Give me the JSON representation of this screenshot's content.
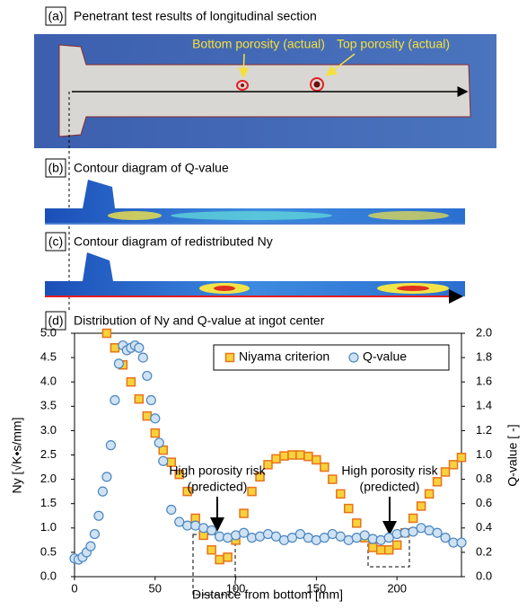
{
  "panels": {
    "a": {
      "label": "(a)",
      "title": "Penetrant test results of longitudinal section",
      "bottom": "Bottom porosity (actual)",
      "top": "Top porosity (actual)"
    },
    "b": {
      "label": "(b)",
      "title": "Contour diagram of Q-value"
    },
    "c": {
      "label": "(c)",
      "title": "Contour diagram of redistributed Ny"
    },
    "d": {
      "label": "(d)"
    }
  },
  "chart_data": {
    "type": "scatter",
    "title": "Distribution of Ny and Q-value at ingot center",
    "xlabel": "Distance from bottom [mm]",
    "ylabel": "Ny [√K•s/mm]",
    "y2label": "Q-value [ -]",
    "xlim": [
      0,
      240
    ],
    "xticks": [
      0,
      50,
      100,
      150,
      200
    ],
    "ylim": [
      0,
      5
    ],
    "yticks": [
      {
        "value": 0,
        "label": "0.0"
      },
      {
        "value": 0.5,
        "label": "0.5"
      },
      {
        "value": 1,
        "label": "1.0"
      },
      {
        "value": 1.5,
        "label": "1.5"
      },
      {
        "value": 2,
        "label": "2.0"
      },
      {
        "value": 2.5,
        "label": "2.5"
      },
      {
        "value": 3,
        "label": "3.0"
      },
      {
        "value": 3.5,
        "label": "3.5"
      },
      {
        "value": 4,
        "label": "4.0"
      },
      {
        "value": 4.5,
        "label": "4.5"
      },
      {
        "value": 5,
        "label": "5.0"
      }
    ],
    "y2lim": [
      0,
      2
    ],
    "y2ticks": [
      {
        "value": 0,
        "label": "0.0"
      },
      {
        "value": 0.2,
        "label": "0.2"
      },
      {
        "value": 0.4,
        "label": "0.4"
      },
      {
        "value": 0.6,
        "label": "0.6"
      },
      {
        "value": 0.8,
        "label": "0.8"
      },
      {
        "value": 1,
        "label": "1.0"
      },
      {
        "value": 1.2,
        "label": "1.2"
      },
      {
        "value": 1.4,
        "label": "1.4"
      },
      {
        "value": 1.6,
        "label": "1.6"
      },
      {
        "value": 1.8,
        "label": "1.8"
      },
      {
        "value": 2,
        "label": "2.0"
      }
    ],
    "series": [
      {
        "name": "Niyama criterion",
        "marker": "square",
        "color": "#f7d23c",
        "edgecolor": "#e8731c",
        "x": [
          20,
          25,
          30,
          35,
          40,
          45,
          50,
          55,
          60,
          65,
          70,
          75,
          80,
          85,
          90,
          95,
          100,
          105,
          110,
          115,
          120,
          125,
          130,
          135,
          140,
          145,
          150,
          155,
          160,
          165,
          170,
          175,
          180,
          185,
          190,
          195,
          200,
          205,
          210,
          215,
          220,
          225,
          230,
          235,
          240
        ],
        "values": [
          5.0,
          4.7,
          4.35,
          4.0,
          3.65,
          3.3,
          2.95,
          2.6,
          2.35,
          2.1,
          1.75,
          1.2,
          0.85,
          0.55,
          0.35,
          0.4,
          0.75,
          1.3,
          1.75,
          2.05,
          2.3,
          2.42,
          2.48,
          2.5,
          2.5,
          2.47,
          2.4,
          2.25,
          2.0,
          1.7,
          1.4,
          1.1,
          0.8,
          0.6,
          0.55,
          0.55,
          0.65,
          0.9,
          1.2,
          1.45,
          1.7,
          1.95,
          2.15,
          2.3,
          2.45
        ]
      },
      {
        "name": "Q-value",
        "marker": "circle",
        "axis": "y2",
        "color": "#cfe2f3",
        "edgecolor": "#4a86c0",
        "x": [
          0,
          2.5,
          5,
          7.5,
          10,
          12.5,
          15,
          17.5,
          20,
          22.5,
          25,
          27.5,
          30,
          32.5,
          35,
          37.5,
          40,
          42.5,
          45,
          47.5,
          50,
          52.5,
          55,
          60,
          65,
          70,
          75,
          80,
          85,
          90,
          95,
          100,
          105,
          110,
          115,
          120,
          125,
          130,
          135,
          140,
          145,
          150,
          155,
          160,
          165,
          170,
          175,
          180,
          185,
          190,
          195,
          200,
          205,
          210,
          215,
          220,
          225,
          230,
          235,
          240
        ],
        "values": [
          0.15,
          0.14,
          0.16,
          0.2,
          0.25,
          0.35,
          0.5,
          0.7,
          0.82,
          1.08,
          1.45,
          1.75,
          1.9,
          1.86,
          1.88,
          1.9,
          1.88,
          1.8,
          1.65,
          1.45,
          1.3,
          1.1,
          0.95,
          0.55,
          0.45,
          0.42,
          0.42,
          0.4,
          0.38,
          0.33,
          0.32,
          0.34,
          0.36,
          0.32,
          0.33,
          0.35,
          0.33,
          0.3,
          0.32,
          0.35,
          0.32,
          0.3,
          0.32,
          0.35,
          0.33,
          0.3,
          0.32,
          0.34,
          0.31,
          0.3,
          0.32,
          0.35,
          0.36,
          0.37,
          0.4,
          0.38,
          0.36,
          0.32,
          0.28,
          0.28
        ]
      }
    ],
    "legend": "upper right",
    "annotations": [
      {
        "lines": [
          "High porosity risk",
          "(predicted)"
        ]
      },
      {
        "lines": [
          "High porosity risk",
          "(predicted)"
        ]
      }
    ]
  }
}
